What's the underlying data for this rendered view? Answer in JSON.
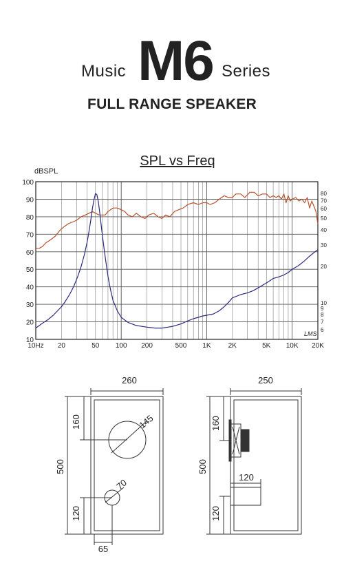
{
  "header": {
    "music": "Music",
    "model": "M6",
    "series": "Series",
    "subtitle": "FULL RANGE SPEAKER"
  },
  "chart_data": {
    "type": "line",
    "title": "SPL vs Freq",
    "ylabel": "dBSPL",
    "xscale": "log",
    "xlim": [
      10,
      20000
    ],
    "ylim": [
      10,
      100
    ],
    "x_tick_labels": [
      "10Hz",
      "20",
      "50",
      "100",
      "200",
      "500",
      "1K",
      "2K",
      "5K",
      "10K",
      "20K"
    ],
    "x_tick_values": [
      10,
      20,
      50,
      100,
      200,
      500,
      1000,
      2000,
      5000,
      10000,
      20000
    ],
    "y_tick_labels": [
      "10",
      "20",
      "30",
      "40",
      "50",
      "60",
      "70",
      "80",
      "90",
      "100"
    ],
    "y_tick_values": [
      10,
      20,
      30,
      40,
      50,
      60,
      70,
      80,
      90,
      100
    ],
    "y2_tick_labels": [
      "80",
      "70",
      "60",
      "50",
      "40",
      "30",
      "20",
      "10",
      "9",
      "8",
      "7",
      "6"
    ],
    "y2_tick_values": [
      80,
      70,
      60,
      50,
      40,
      30,
      20,
      10,
      9,
      8,
      7,
      6
    ],
    "y2_scale": "log",
    "grid": true,
    "annotation": "LMS",
    "colors": {
      "spl": "#b8522c",
      "impedance": "#2b2a7e",
      "grid": "#555555"
    },
    "series": [
      {
        "x": [
          10,
          11,
          12,
          13,
          14,
          15,
          17,
          19,
          21,
          24,
          27,
          30,
          34,
          38,
          42,
          46,
          50,
          55,
          60,
          65,
          70,
          75,
          80,
          90,
          100,
          110,
          120,
          135,
          150,
          170,
          190,
          210,
          240,
          270,
          300,
          330,
          370,
          420,
          470,
          530,
          600,
          700,
          800,
          900,
          1000,
          1100,
          1250,
          1400,
          1600,
          1800,
          2000,
          2200,
          2500,
          2800,
          3200,
          3600,
          4000,
          4500,
          5000,
          5500,
          6000,
          6500,
          7000,
          7500,
          8000,
          8500,
          9000,
          9500,
          10000,
          11000,
          12000,
          13000,
          14000,
          15000,
          16000,
          17000,
          18000,
          19000,
          20000
        ],
        "values": [
          62,
          62,
          63,
          65,
          66,
          67,
          69,
          72,
          74,
          76,
          77,
          78,
          80,
          81,
          82,
          83,
          82,
          81,
          81,
          81,
          83,
          84,
          85,
          85,
          84,
          83,
          81,
          80,
          82,
          80,
          79,
          81,
          82,
          80,
          79,
          81,
          80,
          83,
          84,
          85,
          87,
          88,
          87,
          88,
          88,
          87,
          88,
          90,
          92,
          91,
          91,
          93,
          93,
          91,
          94,
          94,
          92,
          93,
          93,
          91,
          92,
          91,
          92,
          90,
          93,
          88,
          92,
          89,
          90,
          91,
          89,
          90,
          88,
          91,
          85,
          89,
          86,
          83,
          76
        ]
      },
      {
        "x": [
          10,
          12,
          14,
          16,
          18,
          20,
          22,
          25,
          28,
          31,
          34,
          37,
          40,
          42,
          44,
          46,
          48,
          50,
          52,
          54,
          56,
          58,
          60,
          63,
          66,
          70,
          75,
          80,
          90,
          100,
          120,
          150,
          200,
          250,
          300,
          350,
          400,
          500,
          600,
          700,
          800,
          900,
          1000,
          1200,
          1400,
          1600,
          1800,
          2000,
          2500,
          3000,
          3500,
          4000,
          5000,
          6000,
          7000,
          8000,
          9000,
          10000,
          12000,
          14000,
          16000,
          18000,
          20000
        ],
        "values": [
          6.2,
          6.8,
          7.3,
          7.9,
          8.6,
          9.3,
          10.2,
          11.8,
          13.8,
          16.5,
          20,
          25,
          32,
          39,
          48,
          60,
          71,
          80,
          78,
          68,
          56,
          45,
          37,
          28,
          22,
          16.5,
          12.8,
          10.5,
          8.6,
          7.6,
          6.9,
          6.5,
          6.3,
          6.2,
          6.2,
          6.3,
          6.4,
          6.7,
          7.1,
          7.4,
          7.6,
          7.8,
          7.9,
          8.1,
          8.6,
          9.3,
          10.1,
          11,
          11.7,
          12.1,
          12.6,
          13.3,
          14.6,
          15.9,
          16.4,
          17.0,
          17.8,
          18.9,
          20.4,
          22.3,
          24.3,
          26.0,
          27.5
        ]
      }
    ]
  },
  "dimensions": {
    "front": {
      "width": "260",
      "height": "500",
      "top": "160",
      "bottom": "120",
      "driver": "145",
      "port": "70",
      "offset": "65"
    },
    "side": {
      "width": "250",
      "height": "500",
      "top": "160",
      "bottom": "120",
      "port_depth": "120"
    }
  }
}
